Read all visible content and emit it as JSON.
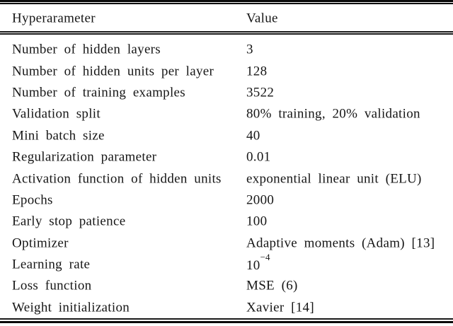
{
  "page": {
    "background": "#ffffff",
    "text_color": "#161616",
    "rule_color": "#0a0a0a"
  },
  "table": {
    "header": {
      "col1": "Hyperarameter",
      "col2": "Value"
    },
    "rows": [
      {
        "param": "Number of hidden layers",
        "value": "3"
      },
      {
        "param": "Number of hidden units per layer",
        "value": "128"
      },
      {
        "param": "Number of training examples",
        "value": "3522"
      },
      {
        "param": "Validation split",
        "value": "80% training, 20% validation"
      },
      {
        "param": "Mini batch size",
        "value": "40"
      },
      {
        "param": "Regularization parameter",
        "value": "0.01"
      },
      {
        "param": "Activation function of hidden units",
        "value": "exponential linear unit (ELU)"
      },
      {
        "param": "Epochs",
        "value": "2000"
      },
      {
        "param": "Early stop patience",
        "value": "100"
      },
      {
        "param": "Optimizer",
        "value": "Adaptive moments (Adam) [13]"
      },
      {
        "param": "Learning rate",
        "value": "10",
        "exponent": "−4"
      },
      {
        "param": "Loss function",
        "value": "MSE (6)"
      },
      {
        "param": "Weight initialization",
        "value": "Xavier [14]"
      }
    ]
  },
  "chart_data": {
    "type": "table",
    "columns": [
      "Hyperarameter",
      "Value"
    ],
    "rows": [
      [
        "Number of hidden layers",
        "3"
      ],
      [
        "Number of hidden units per layer",
        "128"
      ],
      [
        "Number of training examples",
        "3522"
      ],
      [
        "Validation split",
        "80% training, 20% validation"
      ],
      [
        "Mini batch size",
        "40"
      ],
      [
        "Regularization parameter",
        "0.01"
      ],
      [
        "Activation function of hidden units",
        "exponential linear unit (ELU)"
      ],
      [
        "Epochs",
        "2000"
      ],
      [
        "Early stop patience",
        "100"
      ],
      [
        "Optimizer",
        "Adaptive moments (Adam) [13]"
      ],
      [
        "Learning rate",
        "10^−4"
      ],
      [
        "Loss function",
        "MSE (6)"
      ],
      [
        "Weight initialization",
        "Xavier [14]"
      ]
    ]
  }
}
